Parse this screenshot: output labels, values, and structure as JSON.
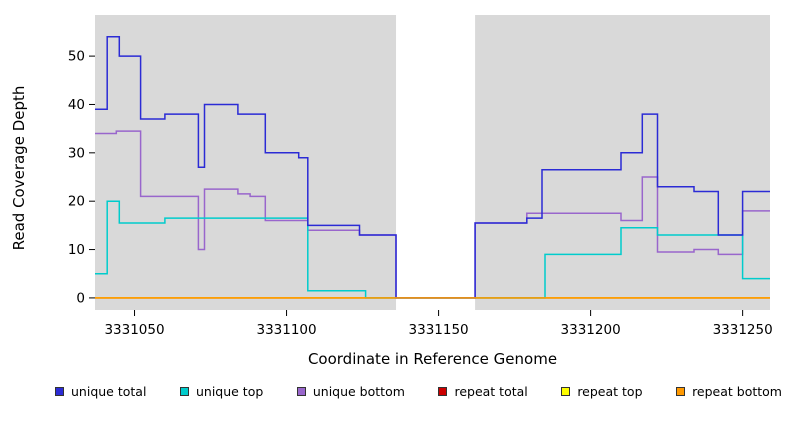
{
  "chart_data": {
    "type": "line",
    "subtype": "step-coverage-plot",
    "title": "",
    "xlabel": "Coordinate in Reference Genome",
    "ylabel": "Read Coverage Depth",
    "xlim": [
      3331037,
      3331259
    ],
    "ylim": [
      0,
      57
    ],
    "x_ticks": [
      3331050,
      3331100,
      3331150,
      3331200,
      3331250
    ],
    "y_ticks": [
      0,
      10,
      20,
      30,
      40,
      50
    ],
    "plot_bg": "#d9d9d9",
    "gap_region": {
      "start": 3331136,
      "end": 3331162,
      "fill": "#ffffff"
    },
    "x_end": 3331259,
    "legend_position": "bottom",
    "grid": false,
    "series": [
      {
        "name": "unique total",
        "color": "#2b2bd5",
        "steps": [
          [
            3331037,
            39
          ],
          [
            3331041,
            54
          ],
          [
            3331045,
            50
          ],
          [
            3331052,
            37
          ],
          [
            3331060,
            38
          ],
          [
            3331071,
            27
          ],
          [
            3331073,
            40
          ],
          [
            3331084,
            38
          ],
          [
            3331093,
            30
          ],
          [
            3331104,
            29
          ],
          [
            3331107,
            15
          ],
          [
            3331124,
            13
          ],
          [
            3331136,
            0
          ],
          [
            3331162,
            15.5
          ],
          [
            3331179,
            16.5
          ],
          [
            3331184,
            26.5
          ],
          [
            3331210,
            30
          ],
          [
            3331217,
            38
          ],
          [
            3331222,
            23
          ],
          [
            3331234,
            22
          ],
          [
            3331242,
            13
          ],
          [
            3331250,
            22
          ]
        ]
      },
      {
        "name": "unique top",
        "color": "#00cccc",
        "steps": [
          [
            3331037,
            5
          ],
          [
            3331041,
            20
          ],
          [
            3331045,
            15.5
          ],
          [
            3331060,
            16.5
          ],
          [
            3331107,
            1.5
          ],
          [
            3331126,
            0
          ],
          [
            3331185,
            9
          ],
          [
            3331210,
            14.5
          ],
          [
            3331222,
            13
          ],
          [
            3331250,
            4
          ]
        ]
      },
      {
        "name": "unique bottom",
        "color": "#9966cc",
        "steps": [
          [
            3331037,
            34
          ],
          [
            3331044,
            34.5
          ],
          [
            3331052,
            21
          ],
          [
            3331071,
            10
          ],
          [
            3331073,
            22.5
          ],
          [
            3331084,
            21.5
          ],
          [
            3331088,
            21
          ],
          [
            3331093,
            16
          ],
          [
            3331107,
            14
          ],
          [
            3331124,
            13
          ],
          [
            3331136,
            0
          ],
          [
            3331162,
            15.5
          ],
          [
            3331179,
            17.5
          ],
          [
            3331210,
            16
          ],
          [
            3331217,
            25
          ],
          [
            3331222,
            9.5
          ],
          [
            3331234,
            10
          ],
          [
            3331242,
            9
          ],
          [
            3331250,
            18
          ]
        ]
      },
      {
        "name": "repeat total",
        "color": "#cc0000",
        "steps": [
          [
            3331037,
            0
          ]
        ]
      },
      {
        "name": "repeat top",
        "color": "#ffff00",
        "steps": [
          [
            3331037,
            0
          ]
        ]
      },
      {
        "name": "repeat bottom",
        "color": "#ff9900",
        "steps": [
          [
            3331037,
            0
          ]
        ]
      }
    ]
  }
}
